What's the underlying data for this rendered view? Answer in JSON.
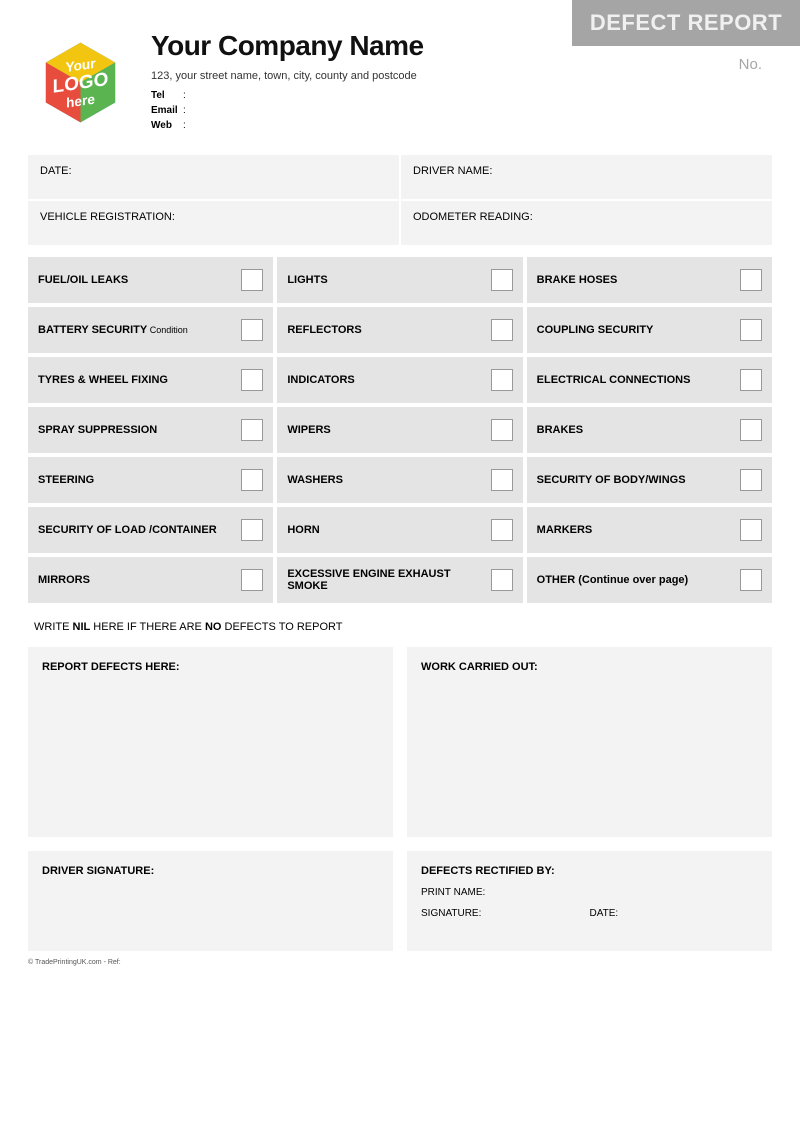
{
  "logo": {
    "top_text": "Your",
    "mid_text": "LOGO",
    "bot_text": "here",
    "face_colors": [
      "#e84c3d",
      "#3a86d8",
      "#5ab550",
      "#f2c511"
    ]
  },
  "company": {
    "name": "Your Company Name",
    "address": "123, your street name, town, city, county and postcode",
    "tel_label": "Tel",
    "email_label": "Email",
    "web_label": "Web"
  },
  "title": {
    "banner": "DEFECT REPORT",
    "no_label": "No."
  },
  "info": {
    "date": "DATE:",
    "driver_name": "DRIVER NAME:",
    "vehicle_reg": "VEHICLE REGISTRATION:",
    "odometer": "ODOMETER READING:"
  },
  "checks": {
    "col1": [
      {
        "label": "FUEL/OIL LEAKS"
      },
      {
        "label": "BATTERY SECURITY",
        "sub": "Condition"
      },
      {
        "label": "TYRES & WHEEL FIXING"
      },
      {
        "label": "SPRAY SUPPRESSION"
      },
      {
        "label": "STEERING"
      },
      {
        "label": "SECURITY OF LOAD /CONTAINER"
      },
      {
        "label": "MIRRORS"
      }
    ],
    "col2": [
      {
        "label": "LIGHTS"
      },
      {
        "label": "REFLECTORS"
      },
      {
        "label": "INDICATORS"
      },
      {
        "label": "WIPERS"
      },
      {
        "label": "WASHERS"
      },
      {
        "label": "HORN"
      },
      {
        "label": "EXCESSIVE ENGINE EXHAUST SMOKE"
      }
    ],
    "col3": [
      {
        "label": "BRAKE HOSES"
      },
      {
        "label": "COUPLING SECURITY"
      },
      {
        "label": "ELECTRICAL CONNECTIONS"
      },
      {
        "label": "BRAKES"
      },
      {
        "label": "SECURITY OF BODY/WINGS"
      },
      {
        "label": "MARKERS"
      },
      {
        "label": "OTHER (Continue over page)"
      }
    ]
  },
  "nil_prefix": "WRITE ",
  "nil_bold1": "NIL",
  "nil_mid": " HERE IF THERE ARE ",
  "nil_bold2": "NO",
  "nil_suffix": " DEFECTS TO REPORT",
  "report": {
    "defects": "REPORT DEFECTS HERE:",
    "work": "WORK CARRIED OUT:"
  },
  "sign": {
    "driver": "DRIVER SIGNATURE:",
    "rectified": "DEFECTS RECTIFIED BY:",
    "print_name": "PRINT NAME:",
    "signature": "SIGNATURE:",
    "date": "DATE:"
  },
  "footer": "© TradePrintingUK.com - Ref:"
}
